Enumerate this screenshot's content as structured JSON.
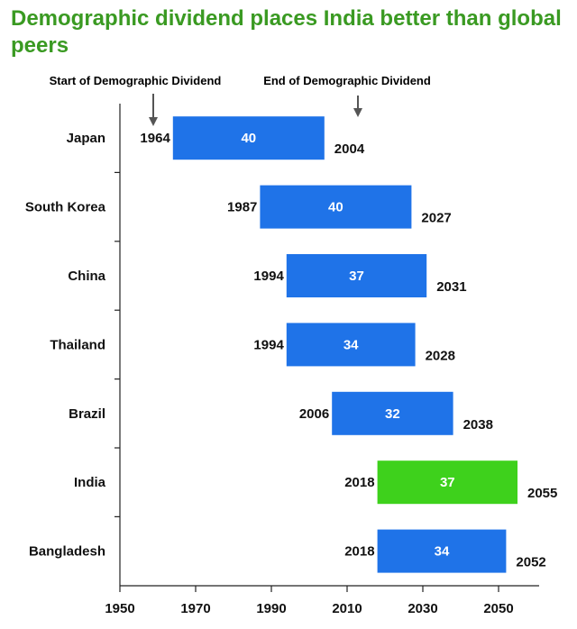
{
  "title": "Demographic dividend places India better than global peers",
  "colors": {
    "title": "#3a9a22",
    "bar": "#1f73e8",
    "highlight": "#3ed11c",
    "text": "#111111",
    "axis": "#222222",
    "arrow": "#555555"
  },
  "annotations": {
    "start_label": "Start of Demographic Dividend",
    "end_label": "End of Demographic Dividend"
  },
  "chart_data": {
    "type": "bar",
    "orientation": "horizontal",
    "subtype": "floating-range",
    "title": "Demographic dividend places India better than global peers",
    "categories": [
      "Japan",
      "South Korea",
      "China",
      "Thailand",
      "Brazil",
      "India",
      "Bangladesh"
    ],
    "start": [
      1964,
      1987,
      1994,
      1994,
      2006,
      2018,
      2018
    ],
    "end": [
      2004,
      2027,
      2031,
      2028,
      2038,
      2055,
      2052
    ],
    "duration_labels": [
      40,
      40,
      37,
      34,
      32,
      37,
      34
    ],
    "highlight": "India",
    "xlim": [
      1950,
      2060
    ],
    "xticks": [
      1950,
      1970,
      1990,
      2010,
      2030,
      2050
    ],
    "xlabel": "",
    "ylabel": "",
    "grid": false,
    "legend": "none"
  }
}
